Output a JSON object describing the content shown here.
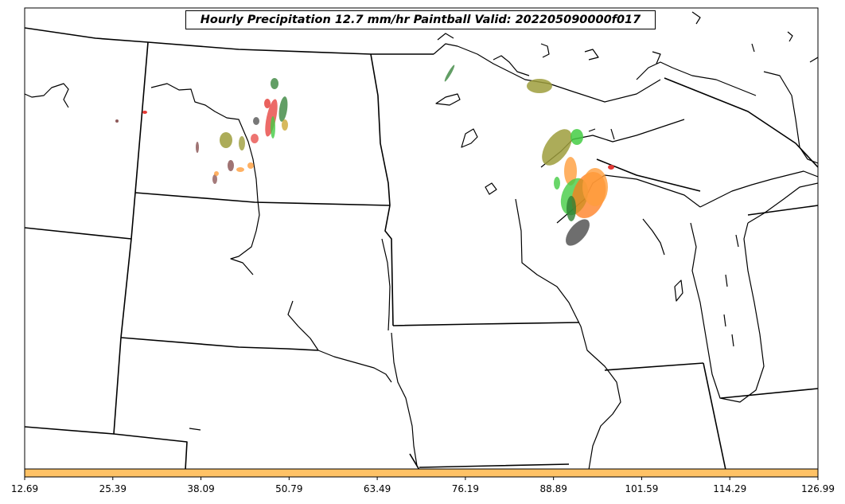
{
  "title": "Hourly Precipitation 12.7 mm/hr Paintball Valid: 202205090000f017",
  "colors": {
    "background": "#ffffff",
    "borders": "#000000",
    "colorbar": "#ffc266",
    "members": [
      "#2e7d32",
      "#e53935",
      "#9e9e3c",
      "#ff9d3c",
      "#44cc44",
      "#8e5a5a",
      "#555555",
      "#c9a227"
    ]
  },
  "colorbar": {
    "ticks": [
      "12.69",
      "25.39",
      "38.09",
      "50.79",
      "63.49",
      "76.19",
      "88.89",
      "101.59",
      "114.29",
      "126.99"
    ]
  }
}
